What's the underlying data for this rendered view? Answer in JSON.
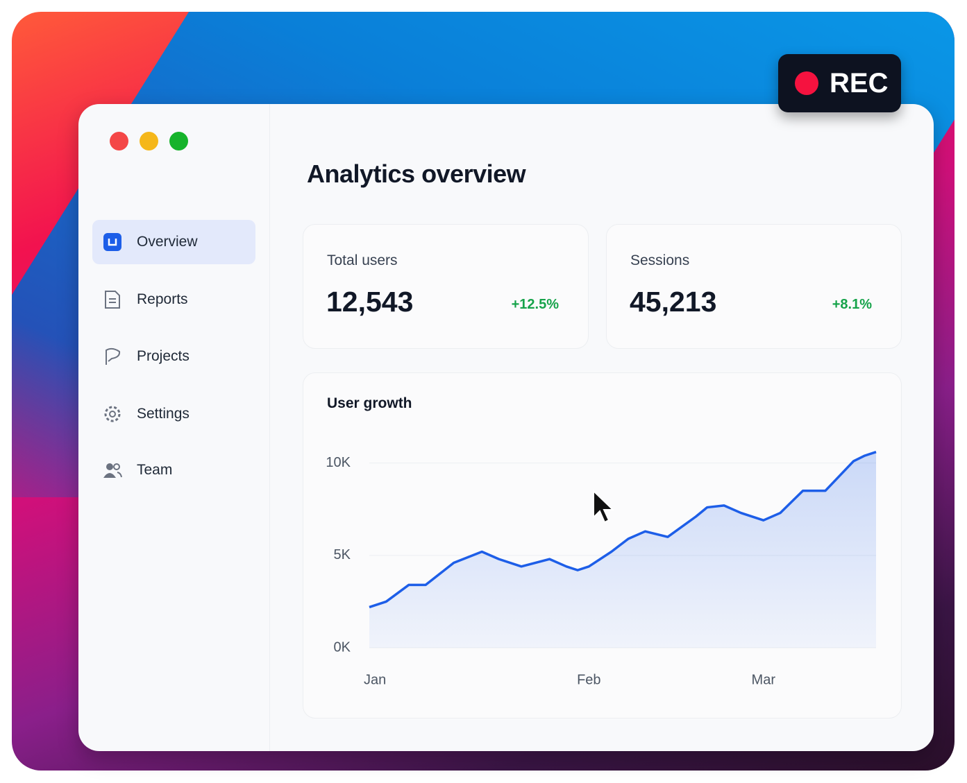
{
  "rec": "REC",
  "title": "Analytics overview",
  "nav": [
    "Overview",
    "Reports",
    "Projects",
    "Settings",
    "Team"
  ],
  "stats": [
    {
      "label": "Total users",
      "value": "12,543",
      "change": "+12.5%"
    },
    {
      "label": "Sessions",
      "value": "45,213",
      "change": "+8.1%"
    }
  ],
  "chart_data": {
    "type": "line",
    "title": "User growth",
    "color": "#1d5ee8",
    "grid": true,
    "x": [
      0,
      3,
      7,
      10,
      15,
      20,
      23,
      27,
      32,
      35,
      37,
      39,
      43,
      46,
      49,
      53,
      58,
      60,
      63,
      66,
      70,
      73,
      77,
      81,
      86,
      88,
      90
    ],
    "values": [
      2200,
      2500,
      3400,
      3400,
      4600,
      5200,
      4800,
      4400,
      4800,
      4400,
      4200,
      4400,
      5200,
      5900,
      6300,
      6000,
      7100,
      7600,
      7700,
      7300,
      6900,
      7300,
      8500,
      8500,
      10100,
      10400,
      10600
    ],
    "xlim": [
      0,
      90
    ],
    "xticks": [
      {
        "value": 1,
        "label": "Jan"
      },
      {
        "value": 39,
        "label": "Feb"
      },
      {
        "value": 70,
        "label": "Mar"
      }
    ],
    "ylim": [
      0,
      11000
    ],
    "yticks": [
      {
        "value": 0,
        "label": "0K"
      },
      {
        "value": 5000,
        "label": "5K"
      },
      {
        "value": 10000,
        "label": "10K"
      }
    ]
  }
}
